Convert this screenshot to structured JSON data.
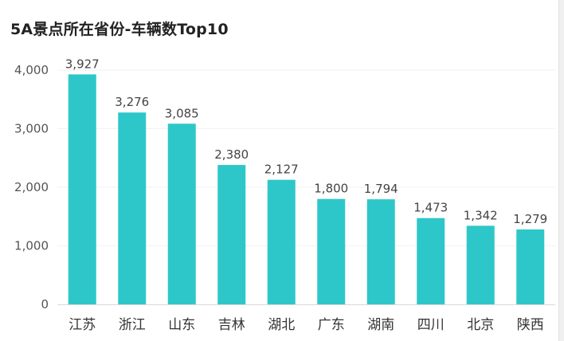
{
  "title": "5A景点所在省份-车辆数Top10",
  "colors": {
    "bar": "#2ec7c9",
    "grid": "#f0f2f5",
    "axis": "#d9d9d9"
  },
  "chart_data": {
    "type": "bar",
    "title": "5A景点所在省份-车辆数Top10",
    "categories": [
      "江苏",
      "浙江",
      "山东",
      "吉林",
      "湖北",
      "广东",
      "湖南",
      "四川",
      "北京",
      "陕西"
    ],
    "values": [
      3927,
      3276,
      3085,
      2380,
      2127,
      1800,
      1794,
      1473,
      1342,
      1279
    ],
    "value_labels": [
      "3,927",
      "3,276",
      "3,085",
      "2,380",
      "2,127",
      "1,800",
      "1,794",
      "1,473",
      "1,342",
      "1,279"
    ],
    "yticks": [
      "0",
      "1,000",
      "2,000",
      "3,000",
      "4,000"
    ],
    "ylim": [
      0,
      4000
    ],
    "grid": true,
    "legend": "none"
  }
}
